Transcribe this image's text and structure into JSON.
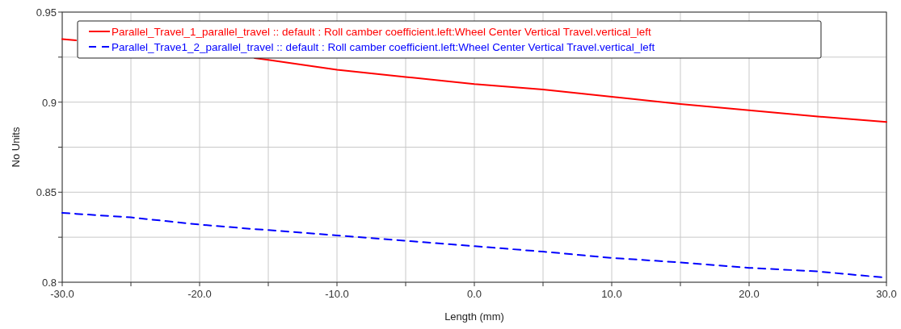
{
  "chart_data": {
    "type": "line",
    "xlabel": "Length (mm)",
    "ylabel": "No Units",
    "x": [
      -30,
      -29,
      -25,
      -20,
      -16,
      -15,
      -10,
      -5,
      0,
      5,
      10,
      15,
      20,
      25,
      30
    ],
    "series": [
      {
        "name": "Parallel_Travel_1_parallel_travel :: default : Roll camber coefficient.left:Wheel Center Vertical Travel.vertical_left",
        "color": "#ff0000",
        "line_style": "solid",
        "values": [
          0.935,
          0.9343,
          null,
          null,
          0.9245,
          0.9235,
          0.918,
          0.914,
          0.91,
          0.907,
          0.903,
          0.899,
          0.8955,
          0.892,
          0.889
        ]
      },
      {
        "name": "Parallel_Trave1_2_parallel_travel :: default : Roll camber coefficient.left:Wheel Center Vertical Travel.vertical_left",
        "color": "#0000ff",
        "line_style": "dashed",
        "values": [
          0.8385,
          0.838,
          0.836,
          0.832,
          0.8295,
          0.829,
          0.826,
          0.823,
          0.82,
          0.817,
          0.8135,
          0.811,
          0.808,
          0.806,
          0.8025
        ]
      }
    ],
    "xlim": [
      -30,
      30
    ],
    "xticks": [
      {
        "value": -30,
        "label": "-30.0"
      },
      {
        "value": -25,
        "label": null
      },
      {
        "value": -20,
        "label": "-20.0"
      },
      {
        "value": -15,
        "label": null
      },
      {
        "value": -10,
        "label": "-10.0"
      },
      {
        "value": -5,
        "label": null
      },
      {
        "value": 0,
        "label": "0.0"
      },
      {
        "value": 5,
        "label": null
      },
      {
        "value": 10,
        "label": "10.0"
      },
      {
        "value": 15,
        "label": null
      },
      {
        "value": 20,
        "label": "20.0"
      },
      {
        "value": 25,
        "label": null
      },
      {
        "value": 30,
        "label": "30.0"
      }
    ],
    "ylim": [
      0.8,
      0.95
    ],
    "yticks": [
      0.8,
      {
        "value": 0.825,
        "label": null
      },
      0.85,
      {
        "value": 0.875,
        "label": null
      },
      0.9,
      {
        "value": 0.925,
        "label": null
      },
      0.95
    ],
    "grid": true,
    "legend": "top left",
    "marker": "none"
  }
}
